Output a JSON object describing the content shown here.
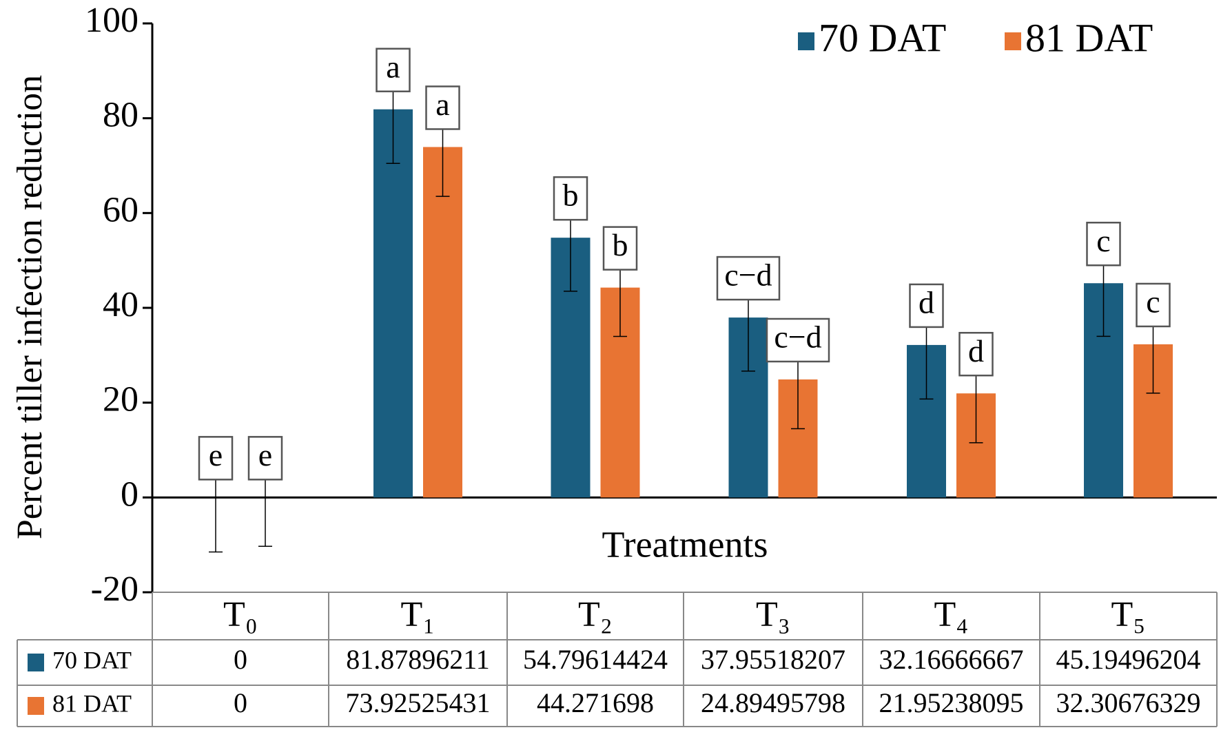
{
  "chart_data": {
    "type": "bar",
    "y_label": "Percent tiller infection reduction",
    "x_label": "Treatments",
    "categories": [
      "T₀",
      "T₁",
      "T₂",
      "T₃",
      "T₄",
      "T₅"
    ],
    "series": [
      {
        "name": "70 DAT",
        "color": "#1a5e80",
        "values": [
          0,
          81.87896211,
          54.79614424,
          37.95518207,
          32.16666667,
          45.19496204
        ],
        "errors": [
          11.5,
          11.4,
          11.3,
          11.3,
          11.4,
          11.2
        ],
        "labels": [
          "e",
          "a",
          "b",
          "c−d",
          "d",
          "c"
        ]
      },
      {
        "name": "81 DAT",
        "color": "#e87433",
        "values": [
          0,
          73.92525431,
          44.271698,
          24.89495798,
          21.95238095,
          32.30676329
        ],
        "errors": [
          10.3,
          10.4,
          10.3,
          10.4,
          10.4,
          10.3
        ],
        "labels": [
          "e",
          "a",
          "b",
          "c−d",
          "d",
          "c"
        ]
      }
    ],
    "ylim": [
      -20,
      100
    ],
    "yticks": [
      -20,
      0,
      20,
      40,
      60,
      80,
      100
    ],
    "legend": "top-right"
  }
}
